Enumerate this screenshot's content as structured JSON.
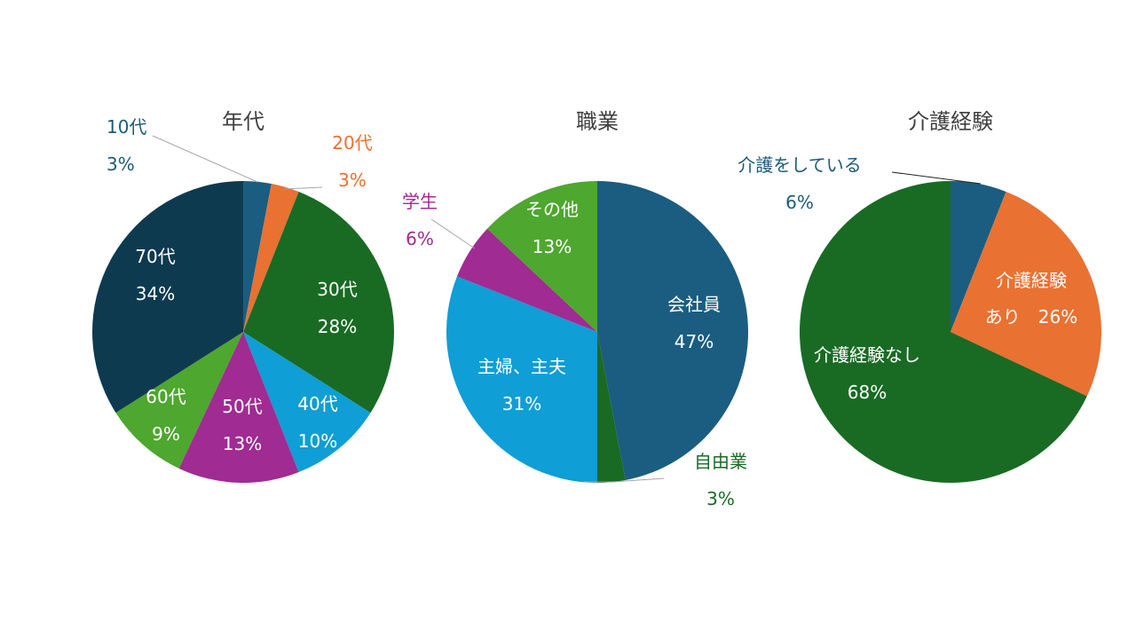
{
  "chart_data": [
    {
      "type": "pie",
      "title": "年代",
      "slices": [
        {
          "label": "10代",
          "value": 3,
          "color": "#1a5d80",
          "label_color": "#1e5a78",
          "percent_text": "3%"
        },
        {
          "label": "20代",
          "value": 3,
          "color": "#e97132",
          "label_color": "#e97132",
          "percent_text": "3%"
        },
        {
          "label": "30代",
          "value": 28,
          "color": "#196b24",
          "label_color": "#ffffff",
          "percent_text": "28%"
        },
        {
          "label": "40代",
          "value": 10,
          "color": "#0f9ed5",
          "label_color": "#ffffff",
          "percent_text": "10%"
        },
        {
          "label": "50代",
          "value": 13,
          "color": "#a02b93",
          "label_color": "#ffffff",
          "percent_text": "13%"
        },
        {
          "label": "60代",
          "value": 9,
          "color": "#4ea72e",
          "label_color": "#ffffff",
          "percent_text": "9%"
        },
        {
          "label": "70代",
          "value": 34,
          "color": "#0e3a50",
          "label_color": "#ffffff",
          "percent_text": "34%"
        }
      ]
    },
    {
      "type": "pie",
      "title": "職業",
      "slices": [
        {
          "label": "会社員",
          "value": 47,
          "color": "#1a5d80",
          "label_color": "#ffffff",
          "percent_text": "47%"
        },
        {
          "label": "自由業",
          "value": 3,
          "color": "#196b24",
          "label_color": "#196b24",
          "percent_text": "3%"
        },
        {
          "label": "主婦、主夫",
          "value": 31,
          "color": "#0f9ed5",
          "label_color": "#ffffff",
          "percent_text": "31%"
        },
        {
          "label": "学生",
          "value": 6,
          "color": "#a02b93",
          "label_color": "#a02b93",
          "percent_text": "6%"
        },
        {
          "label": "その他",
          "value": 13,
          "color": "#4ea72e",
          "label_color": "#ffffff",
          "percent_text": "13%"
        }
      ]
    },
    {
      "type": "pie",
      "title": "介護経験",
      "slices": [
        {
          "label": "介護をしている",
          "value": 6,
          "color": "#1a5d80",
          "label_color": "#1e5a78",
          "percent_text": "6%"
        },
        {
          "label": "介護経験あり",
          "value": 26,
          "color": "#e97132",
          "label_color": "#ffffff",
          "label_lines": [
            "介護経験",
            "あり　26%"
          ]
        },
        {
          "label": "介護経験なし",
          "value": 68,
          "color": "#196b24",
          "label_color": "#ffffff",
          "percent_text": "68%"
        }
      ]
    }
  ]
}
